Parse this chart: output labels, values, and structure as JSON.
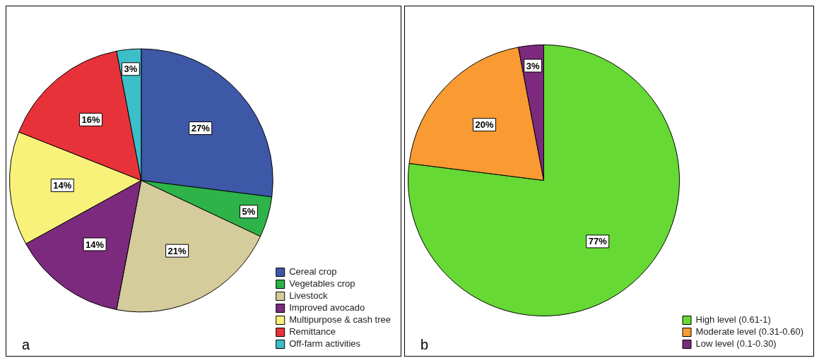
{
  "chart_data": [
    {
      "type": "pie",
      "categories": [
        "Cereal crop",
        "Vegetables crop",
        "Livestock",
        "Improved avocado",
        "Multipurpose & cash tree",
        "Remittance",
        "Off-farm activities"
      ],
      "values": [
        27,
        5,
        21,
        14,
        14,
        16,
        3
      ],
      "value_labels": [
        "27%",
        "5%",
        "21%",
        "14%",
        "14%",
        "16%",
        "3%"
      ],
      "colors": [
        "#3e58a8",
        "#2db34a",
        "#d4cc9a",
        "#7b2a7e",
        "#f8f27a",
        "#e8323a",
        "#3cbfc8"
      ],
      "legend": "bottom right",
      "annotations": [
        "a"
      ]
    },
    {
      "type": "pie",
      "categories": [
        "High level (0.61-1)",
        "Moderate level (0.31-0.60)",
        "Low level (0.1-0.30)"
      ],
      "values": [
        77,
        20,
        3
      ],
      "value_labels": [
        "77%",
        "20%",
        "3%"
      ],
      "colors": [
        "#66d934",
        "#f99b32",
        "#7b2a7e"
      ],
      "legend": "bottom right",
      "annotations": [
        "b"
      ]
    }
  ]
}
